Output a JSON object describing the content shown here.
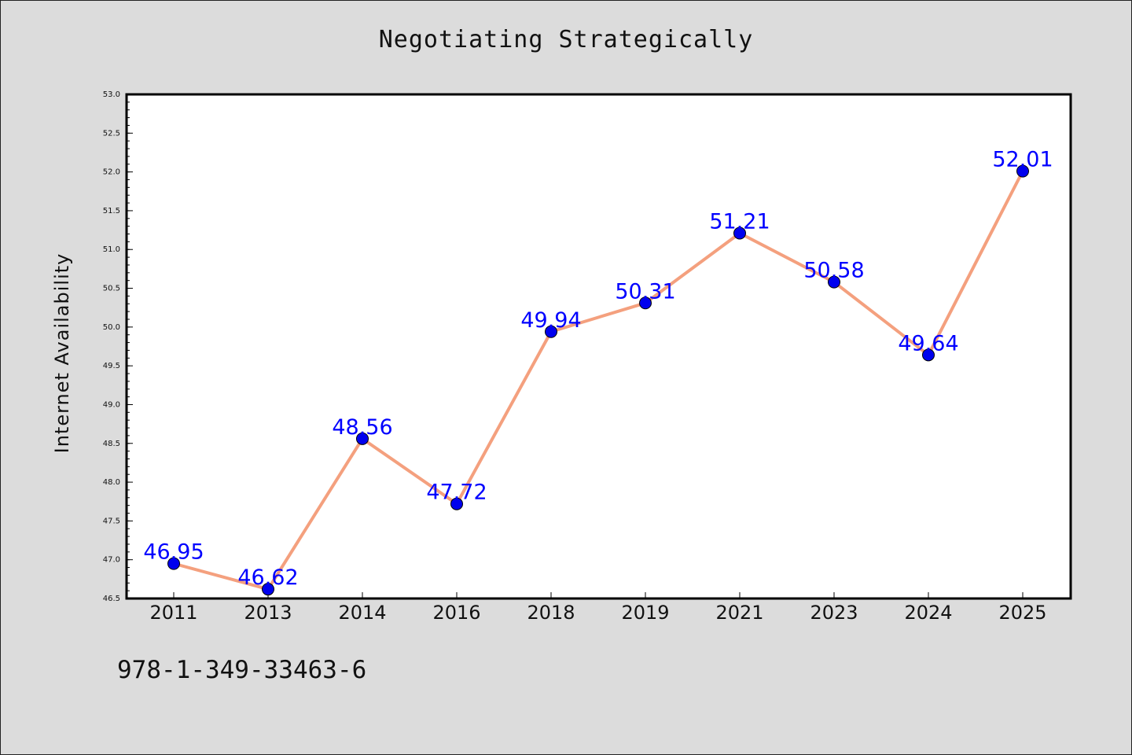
{
  "chart_data": {
    "type": "line",
    "title": "Negotiating Strategically",
    "xlabel": "",
    "ylabel": "Internet Availability",
    "categories": [
      "2011",
      "2013",
      "2014",
      "2016",
      "2018",
      "2019",
      "2021",
      "2023",
      "2024",
      "2025"
    ],
    "series": [
      {
        "values": [
          46.95,
          46.62,
          48.56,
          47.72,
          49.94,
          50.31,
          51.21,
          50.58,
          49.64,
          52.01
        ],
        "labels": [
          "46.95",
          "46.62",
          "48.56",
          "47.72",
          "49.94",
          "50.31",
          "51.21",
          "50.58",
          "49.64",
          "52.01"
        ]
      }
    ],
    "ylim": [
      46.5,
      53.0
    ],
    "yticks": [
      "46.5",
      "47.0",
      "47.5",
      "48.0",
      "48.5",
      "49.0",
      "49.5",
      "50.0",
      "50.5",
      "51.0",
      "51.5",
      "52.0",
      "52.5",
      "53.0"
    ],
    "grid": false,
    "line_color": "#f4a07e",
    "marker_color": "#0000ee",
    "label_color": "#0000ff",
    "background": "#dcdcdc",
    "plot_background": "#ffffff"
  },
  "footer": {
    "isbn": "978-1-349-33463-6"
  }
}
